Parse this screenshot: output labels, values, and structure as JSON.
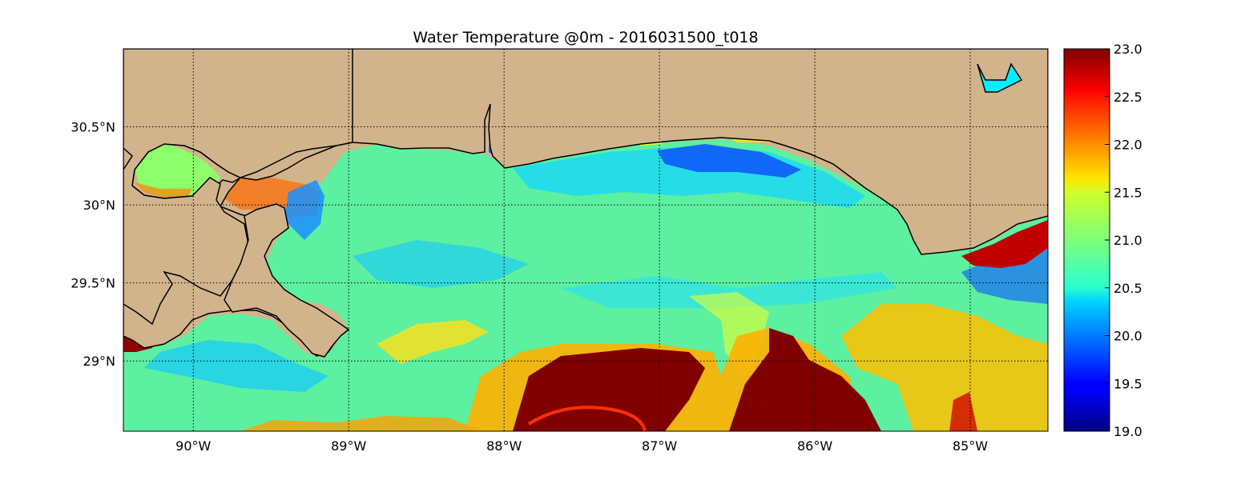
{
  "title": "Water Temperature @0m - 2016031500_t018",
  "map": {
    "lon_range": [
      -90.45,
      -84.5
    ],
    "lat_range": [
      28.55,
      31.0
    ],
    "grid": true,
    "land_color": "#d2b48c",
    "coast_color": "#000000",
    "lon_ticks": [
      {
        "value": -90,
        "label": "90°W"
      },
      {
        "value": -89,
        "label": "89°W"
      },
      {
        "value": -88,
        "label": "88°W"
      },
      {
        "value": -87,
        "label": "87°W"
      },
      {
        "value": -86,
        "label": "86°W"
      },
      {
        "value": -85,
        "label": "85°W"
      }
    ],
    "lat_ticks": [
      {
        "value": 30.5,
        "label": "30.5°N"
      },
      {
        "value": 30.0,
        "label": "30°N"
      },
      {
        "value": 29.5,
        "label": "29.5°N"
      },
      {
        "value": 29.0,
        "label": "29°N"
      }
    ]
  },
  "colorbar": {
    "colormap": "jet",
    "min": 19.0,
    "max": 23.0,
    "ticks": [
      "19.0",
      "19.5",
      "20.0",
      "20.5",
      "21.0",
      "21.5",
      "22.0",
      "22.5",
      "23.0"
    ]
  }
}
